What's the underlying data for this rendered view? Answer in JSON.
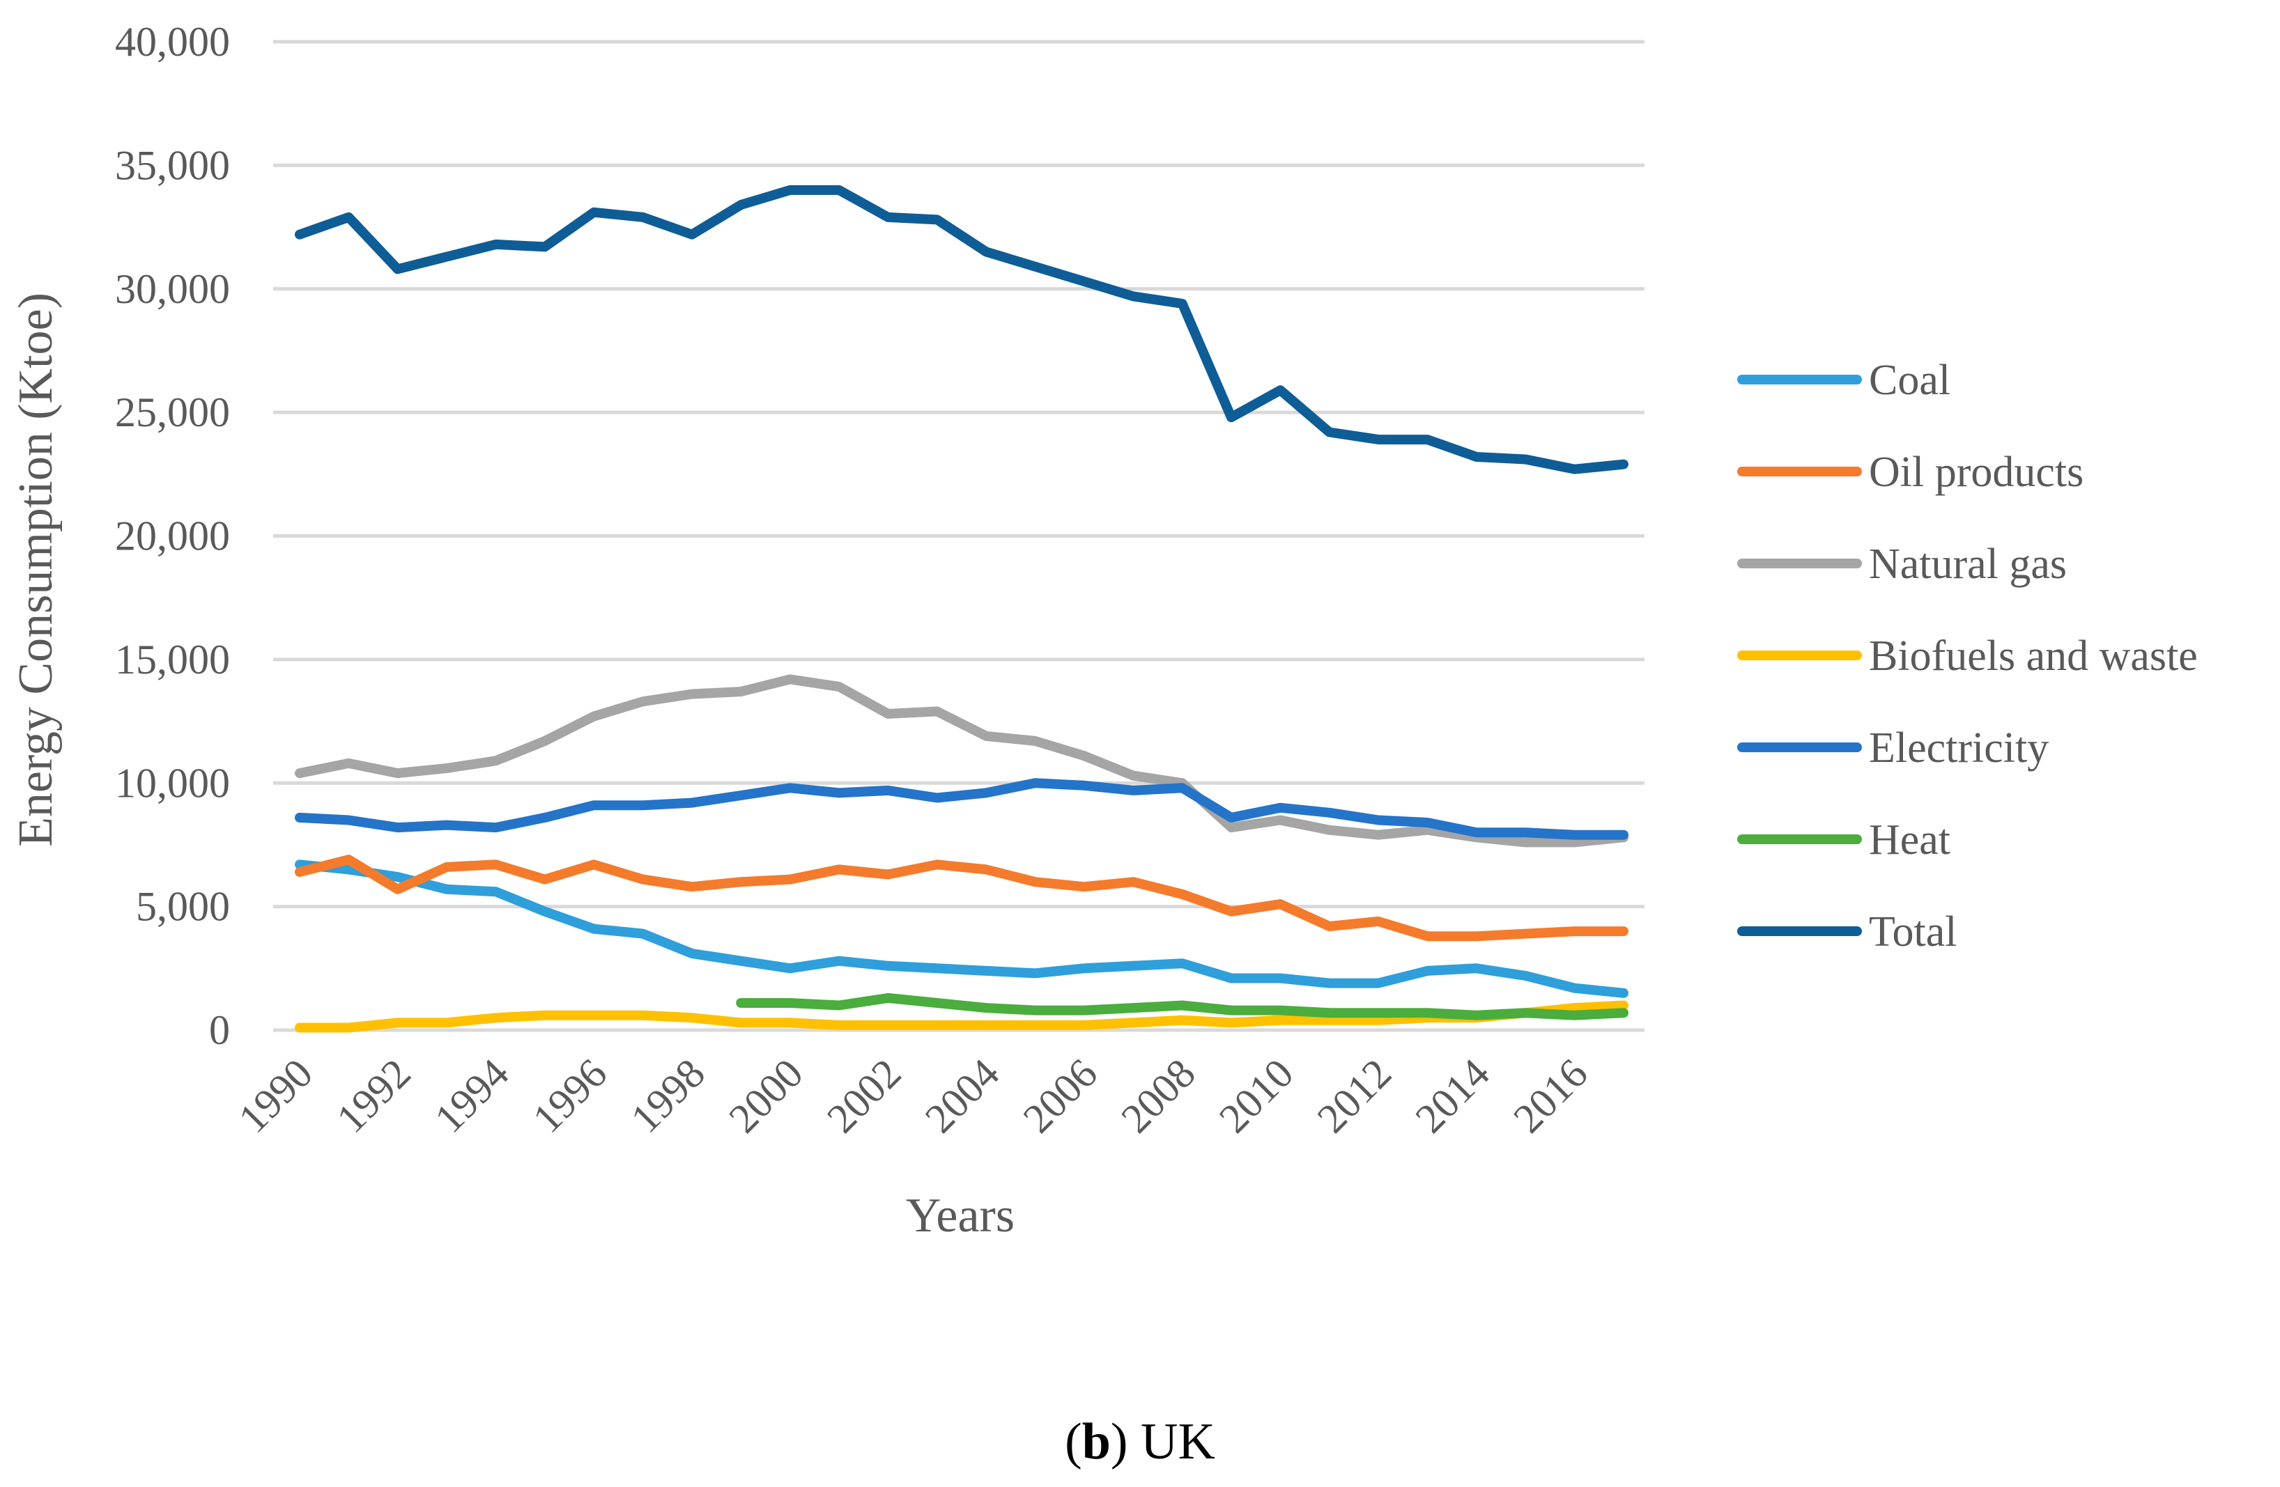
{
  "chart_data": {
    "type": "line",
    "title": "",
    "xlabel": "Years",
    "ylabel": "Energy Consumption (Ktoe)",
    "ylim": [
      0,
      40000
    ],
    "yticks": [
      0,
      5000,
      10000,
      15000,
      20000,
      25000,
      30000,
      35000,
      40000
    ],
    "ytick_labels": [
      "0",
      "5,000",
      "10,000",
      "15,000",
      "20,000",
      "25,000",
      "30,000",
      "35,000",
      "40,000"
    ],
    "x": [
      1990,
      1991,
      1992,
      1993,
      1994,
      1995,
      1996,
      1997,
      1998,
      1999,
      2000,
      2001,
      2002,
      2003,
      2004,
      2005,
      2006,
      2007,
      2008,
      2009,
      2010,
      2011,
      2012,
      2013,
      2014,
      2015,
      2016,
      2017
    ],
    "xtick_labels": [
      "1990",
      "1992",
      "1994",
      "1996",
      "1998",
      "2000",
      "2002",
      "2004",
      "2006",
      "2008",
      "2010",
      "2012",
      "2014",
      "2016"
    ],
    "grid": true,
    "legend_position": "right",
    "series": [
      {
        "name": "Coal",
        "color": "#2e9fdb",
        "values": [
          6700,
          6500,
          6200,
          5700,
          5600,
          4800,
          4100,
          3900,
          3100,
          2800,
          2500,
          2800,
          2600,
          2500,
          2400,
          2300,
          2500,
          2600,
          2700,
          2100,
          2100,
          1900,
          1900,
          2400,
          2500,
          2200,
          1700,
          1500
        ]
      },
      {
        "name": "Oil products",
        "color": "#f47b2c",
        "values": [
          6400,
          6900,
          5700,
          6600,
          6700,
          6100,
          6700,
          6100,
          5800,
          6000,
          6100,
          6500,
          6300,
          6700,
          6500,
          6000,
          5800,
          6000,
          5500,
          4800,
          5100,
          4200,
          4400,
          3800,
          3800,
          3900,
          4000,
          4000
        ]
      },
      {
        "name": "Natural gas",
        "color": "#a5a5a5",
        "values": [
          10400,
          10800,
          10400,
          10600,
          10900,
          11700,
          12700,
          13300,
          13600,
          13700,
          14200,
          13900,
          12800,
          12900,
          11900,
          11700,
          11100,
          10300,
          10000,
          8200,
          8500,
          8100,
          7900,
          8100,
          7800,
          7600,
          7600,
          7800
        ]
      },
      {
        "name": "Biofuels and waste",
        "color": "#ffc000",
        "values": [
          100,
          100,
          300,
          300,
          500,
          600,
          600,
          600,
          500,
          300,
          300,
          200,
          200,
          200,
          200,
          200,
          200,
          300,
          400,
          300,
          400,
          400,
          400,
          500,
          500,
          700,
          900,
          1000
        ]
      },
      {
        "name": "Electricity",
        "color": "#2474c9",
        "values": [
          8600,
          8500,
          8200,
          8300,
          8200,
          8600,
          9100,
          9100,
          9200,
          9500,
          9800,
          9600,
          9700,
          9400,
          9600,
          10000,
          9900,
          9700,
          9800,
          8600,
          9000,
          8800,
          8500,
          8400,
          8000,
          8000,
          7900,
          7900
        ]
      },
      {
        "name": "Heat",
        "color": "#4aad3d",
        "values": [
          null,
          null,
          null,
          null,
          null,
          null,
          null,
          null,
          null,
          1100,
          1100,
          1000,
          1300,
          1100,
          900,
          800,
          800,
          900,
          1000,
          800,
          800,
          700,
          700,
          700,
          600,
          700,
          600,
          700
        ]
      },
      {
        "name": "Total",
        "color": "#0f5d96",
        "values": [
          32200,
          32900,
          30800,
          31300,
          31800,
          31700,
          33100,
          32900,
          32200,
          33400,
          34000,
          34000,
          32900,
          32800,
          31500,
          30900,
          30300,
          29700,
          29400,
          24800,
          25900,
          24200,
          23900,
          23900,
          23200,
          23100,
          22700,
          22900
        ]
      }
    ]
  },
  "caption": {
    "bold_part": "b",
    "text_after": ") UK",
    "open_paren": "("
  }
}
